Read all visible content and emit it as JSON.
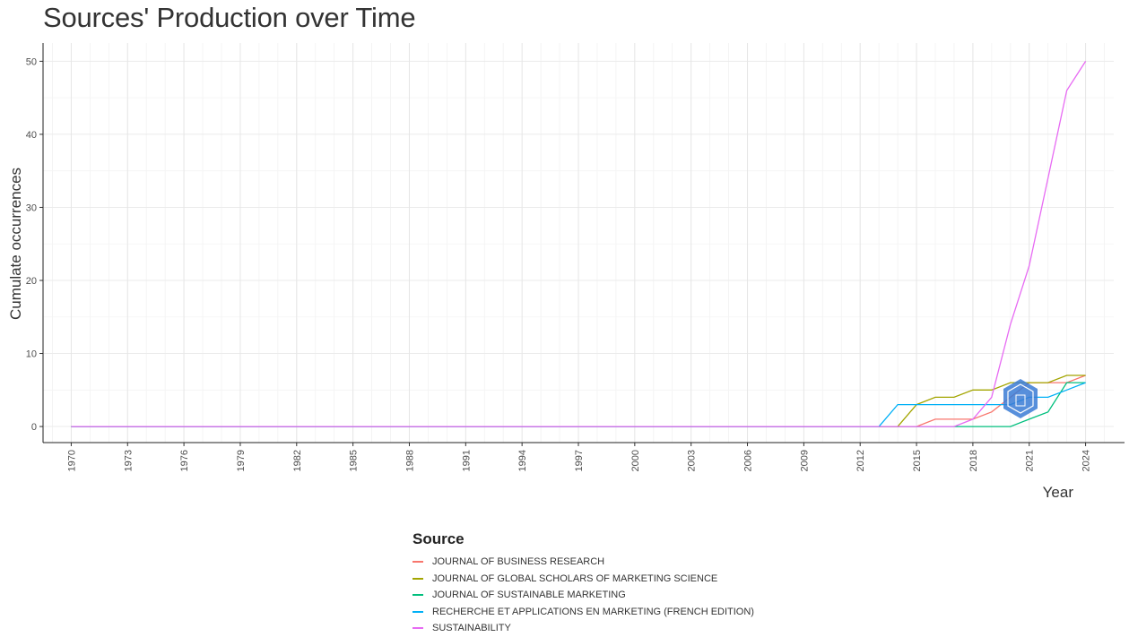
{
  "chart_data": {
    "type": "line",
    "title": "Sources' Production over Time",
    "xlabel": "Year",
    "ylabel": "Cumulate occurrences",
    "xlim": [
      1968.5,
      2025.5
    ],
    "ylim": [
      -2.2,
      52.5
    ],
    "x_ticks": [
      1970,
      1973,
      1976,
      1979,
      1982,
      1985,
      1988,
      1991,
      1994,
      1997,
      2000,
      2003,
      2006,
      2009,
      2012,
      2015,
      2018,
      2021,
      2024
    ],
    "x_tick_labels": [
      "1970",
      "1973",
      "1976",
      "1979",
      "1982",
      "1985",
      "1988",
      "1991",
      "1994",
      "1997",
      "2000",
      "2003",
      "2006",
      "2009",
      "2012",
      "2015",
      "2018",
      "2021",
      "2024"
    ],
    "y_ticks": [
      0,
      10,
      20,
      30,
      40,
      50
    ],
    "y_tick_labels": [
      "0",
      "10",
      "20",
      "30",
      "40",
      "50"
    ],
    "grid": true,
    "legend_title": "Source",
    "legend_position": "bottom",
    "series": [
      {
        "name": "JOURNAL OF BUSINESS RESEARCH",
        "color": "#F8766D",
        "points": [
          [
            1970,
            0
          ],
          [
            2015,
            0
          ],
          [
            2016,
            1
          ],
          [
            2017,
            1
          ],
          [
            2018,
            1
          ],
          [
            2019,
            2
          ],
          [
            2020,
            4
          ],
          [
            2021,
            6
          ],
          [
            2022,
            6
          ],
          [
            2023,
            6
          ],
          [
            2024,
            7
          ]
        ]
      },
      {
        "name": "JOURNAL OF GLOBAL SCHOLARS OF MARKETING SCIENCE",
        "color": "#A3A500",
        "points": [
          [
            1970,
            0
          ],
          [
            2014,
            0
          ],
          [
            2015,
            3
          ],
          [
            2016,
            4
          ],
          [
            2017,
            4
          ],
          [
            2018,
            5
          ],
          [
            2019,
            5
          ],
          [
            2020,
            6
          ],
          [
            2021,
            6
          ],
          [
            2022,
            6
          ],
          [
            2023,
            7
          ],
          [
            2024,
            7
          ]
        ]
      },
      {
        "name": "JOURNAL OF SUSTAINABLE MARKETING",
        "color": "#00BF7D",
        "points": [
          [
            1970,
            0
          ],
          [
            2017,
            0
          ],
          [
            2018,
            0
          ],
          [
            2019,
            0
          ],
          [
            2020,
            0
          ],
          [
            2021,
            1
          ],
          [
            2022,
            2
          ],
          [
            2023,
            6
          ],
          [
            2024,
            6
          ]
        ]
      },
      {
        "name": "RECHERCHE ET APPLICATIONS EN MARKETING (FRENCH EDITION)",
        "color": "#00B0F6",
        "points": [
          [
            1970,
            0
          ],
          [
            2013,
            0
          ],
          [
            2014,
            3
          ],
          [
            2015,
            3
          ],
          [
            2016,
            3
          ],
          [
            2017,
            3
          ],
          [
            2018,
            3
          ],
          [
            2019,
            3
          ],
          [
            2020,
            3
          ],
          [
            2021,
            4
          ],
          [
            2022,
            4
          ],
          [
            2023,
            5
          ],
          [
            2024,
            6
          ]
        ]
      },
      {
        "name": "SUSTAINABILITY",
        "color": "#E76BF3",
        "points": [
          [
            1970,
            0
          ],
          [
            2017,
            0
          ],
          [
            2018,
            1
          ],
          [
            2019,
            4
          ],
          [
            2020,
            14
          ],
          [
            2021,
            22
          ],
          [
            2022,
            34
          ],
          [
            2023,
            46
          ],
          [
            2024,
            50
          ]
        ]
      }
    ]
  }
}
